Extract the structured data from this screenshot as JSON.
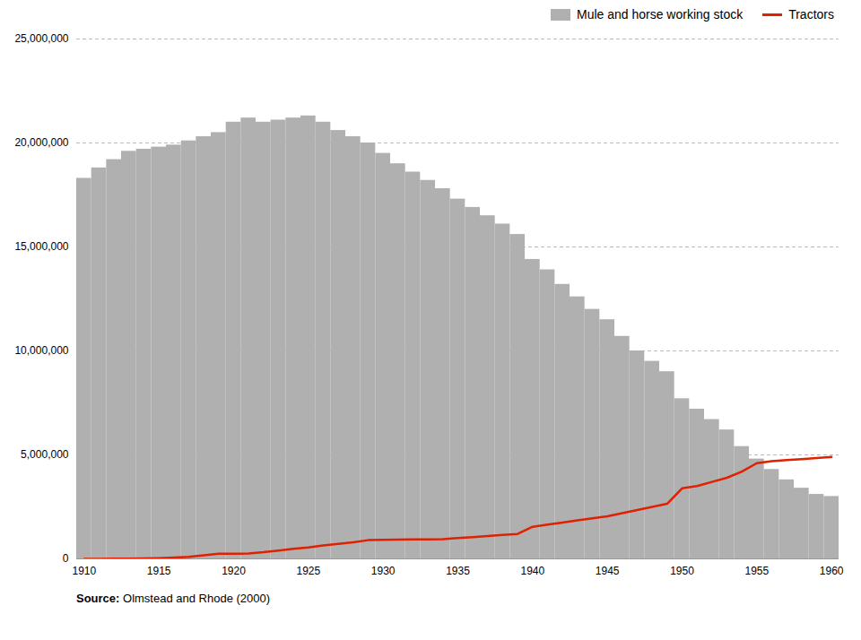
{
  "chart_data": {
    "type": "bar",
    "x": [
      1910,
      1911,
      1912,
      1913,
      1914,
      1915,
      1916,
      1917,
      1918,
      1919,
      1920,
      1921,
      1922,
      1923,
      1924,
      1925,
      1926,
      1927,
      1928,
      1929,
      1930,
      1931,
      1932,
      1933,
      1934,
      1935,
      1936,
      1937,
      1938,
      1939,
      1940,
      1941,
      1942,
      1943,
      1944,
      1945,
      1946,
      1947,
      1948,
      1949,
      1950,
      1951,
      1952,
      1953,
      1954,
      1955,
      1956,
      1957,
      1958,
      1959,
      1960
    ],
    "series": [
      {
        "name": "Mule and horse working stock",
        "type": "bar",
        "color": "#b0b0b0",
        "values": [
          18300000,
          18800000,
          19200000,
          19600000,
          19700000,
          19800000,
          19900000,
          20100000,
          20300000,
          20500000,
          21000000,
          21200000,
          21000000,
          21100000,
          21200000,
          21300000,
          21000000,
          20600000,
          20300000,
          20000000,
          19500000,
          19000000,
          18600000,
          18200000,
          17800000,
          17300000,
          16900000,
          16500000,
          16100000,
          15600000,
          14400000,
          13900000,
          13200000,
          12600000,
          12000000,
          11500000,
          10700000,
          10000000,
          9500000,
          9000000,
          7700000,
          7200000,
          6700000,
          6200000,
          5400000,
          4800000,
          4300000,
          3800000,
          3400000,
          3100000,
          3000000
        ]
      },
      {
        "name": "Tractors",
        "type": "line",
        "color": "#e02000",
        "values": [
          1000,
          4000,
          8000,
          14000,
          20000,
          35000,
          60000,
          100000,
          170000,
          250000,
          246000,
          260000,
          320000,
          400000,
          480000,
          550000,
          650000,
          720000,
          800000,
          900000,
          920000,
          930000,
          940000,
          940000,
          950000,
          1000000,
          1050000,
          1100000,
          1150000,
          1200000,
          1545000,
          1650000,
          1750000,
          1850000,
          1950000,
          2050000,
          2200000,
          2350000,
          2500000,
          2650000,
          3394000,
          3500000,
          3700000,
          3900000,
          4200000,
          4600000,
          4700000,
          4750000,
          4800000,
          4850000,
          4900000
        ]
      }
    ],
    "xlim": [
      1909.5,
      1960.5
    ],
    "xticks": [
      1910,
      1915,
      1920,
      1925,
      1930,
      1935,
      1940,
      1945,
      1950,
      1955,
      1960
    ],
    "ylim": [
      0,
      25000000
    ],
    "yticks": [
      0,
      {
        "value": 5000000,
        "label": "5,000,000"
      },
      {
        "value": 10000000,
        "label": "10,000,000"
      },
      {
        "value": 15000000,
        "label": "15,000,000"
      },
      {
        "value": 20000000,
        "label": "20,000,000"
      },
      {
        "value": 25000000,
        "label": "25,000,000"
      }
    ],
    "grid": true,
    "legend": "upper right",
    "caption": [
      "Source:",
      " Olmstead and Rhode (2000)"
    ]
  }
}
